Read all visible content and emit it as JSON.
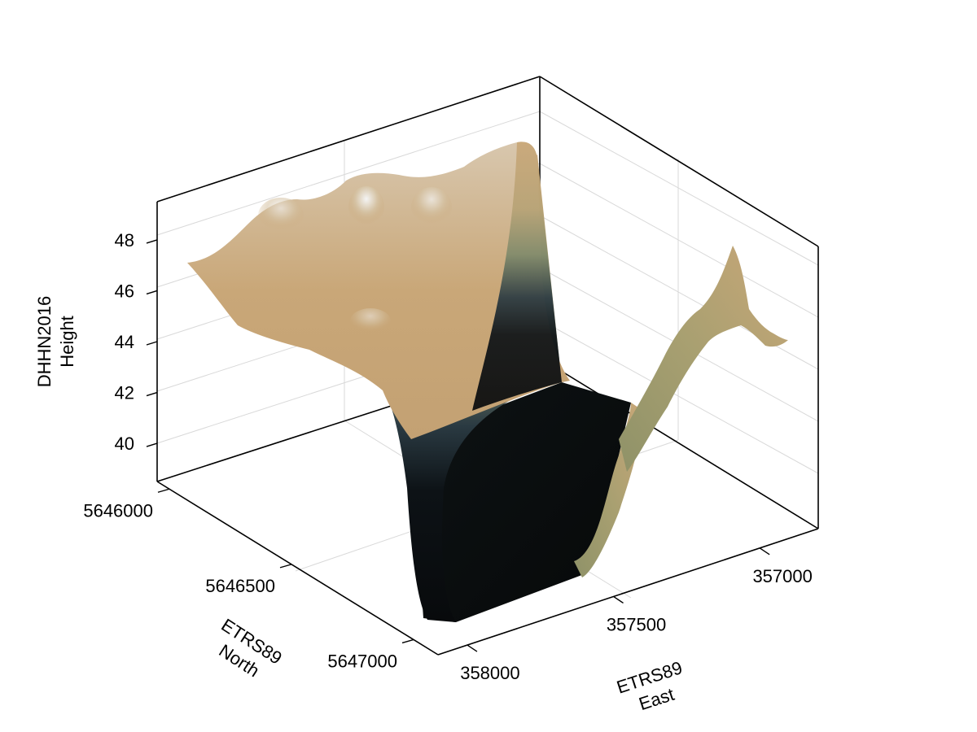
{
  "chart_data": {
    "type": "surface",
    "title": "",
    "xlabel": [
      "ETRS89",
      "East"
    ],
    "ylabel": [
      "ETRS89",
      "North"
    ],
    "zlabel": [
      "DHHN2016",
      "Height"
    ],
    "x_axis": {
      "ticks": [
        357000,
        357500,
        358000
      ],
      "tick_labels": [
        "357000",
        "357500",
        "358000"
      ],
      "range": [
        356800,
        358100
      ]
    },
    "y_axis": {
      "ticks": [
        5646000,
        5646500,
        5647000
      ],
      "tick_labels": [
        "5646000",
        "5646500",
        "5647000"
      ],
      "range": [
        5645950,
        5647100
      ]
    },
    "z_axis": {
      "ticks": [
        40,
        42,
        44,
        46,
        48
      ],
      "tick_labels": [
        "40",
        "42",
        "44",
        "46",
        "48"
      ],
      "range": [
        38.5,
        49.5
      ]
    },
    "colormap": {
      "name": "terrain (dark valley to tan/grey heights)",
      "stops": [
        "#0b0f12",
        "#1c2a33",
        "#6f7a63",
        "#a8a070",
        "#c9a778",
        "#dcc8a8",
        "#eeeeee"
      ]
    },
    "grid": true,
    "description_values": {
      "valley_floor_height": 38.8,
      "plateau_height_range": [
        44,
        48.5
      ],
      "east_ridge_peak_height": 46.8
    }
  }
}
